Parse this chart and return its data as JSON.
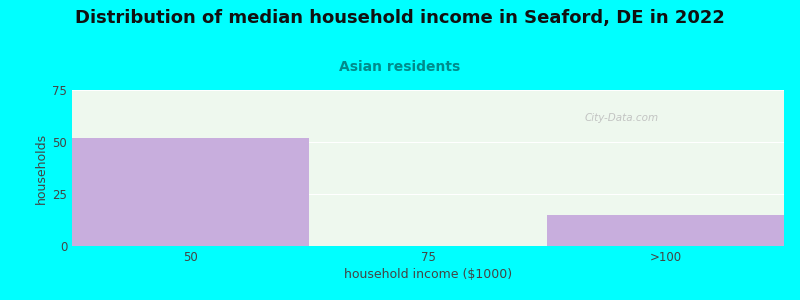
{
  "title": "Distribution of median household income in Seaford, DE in 2022",
  "subtitle": "Asian residents",
  "xlabel": "household income ($1000)",
  "ylabel": "households",
  "categories": [
    "50",
    "75",
    ">100"
  ],
  "values": [
    52,
    0,
    15
  ],
  "bar_color": "#c8aedd",
  "background_color": "#00ffff",
  "plot_bg_color": "#eef8ee",
  "ylim": [
    0,
    75
  ],
  "yticks": [
    0,
    25,
    50,
    75
  ],
  "title_fontsize": 13,
  "subtitle_fontsize": 10,
  "axis_label_fontsize": 9,
  "tick_fontsize": 8.5,
  "subtitle_color": "#008b8b",
  "title_color": "#111111",
  "watermark": "City-Data.com"
}
